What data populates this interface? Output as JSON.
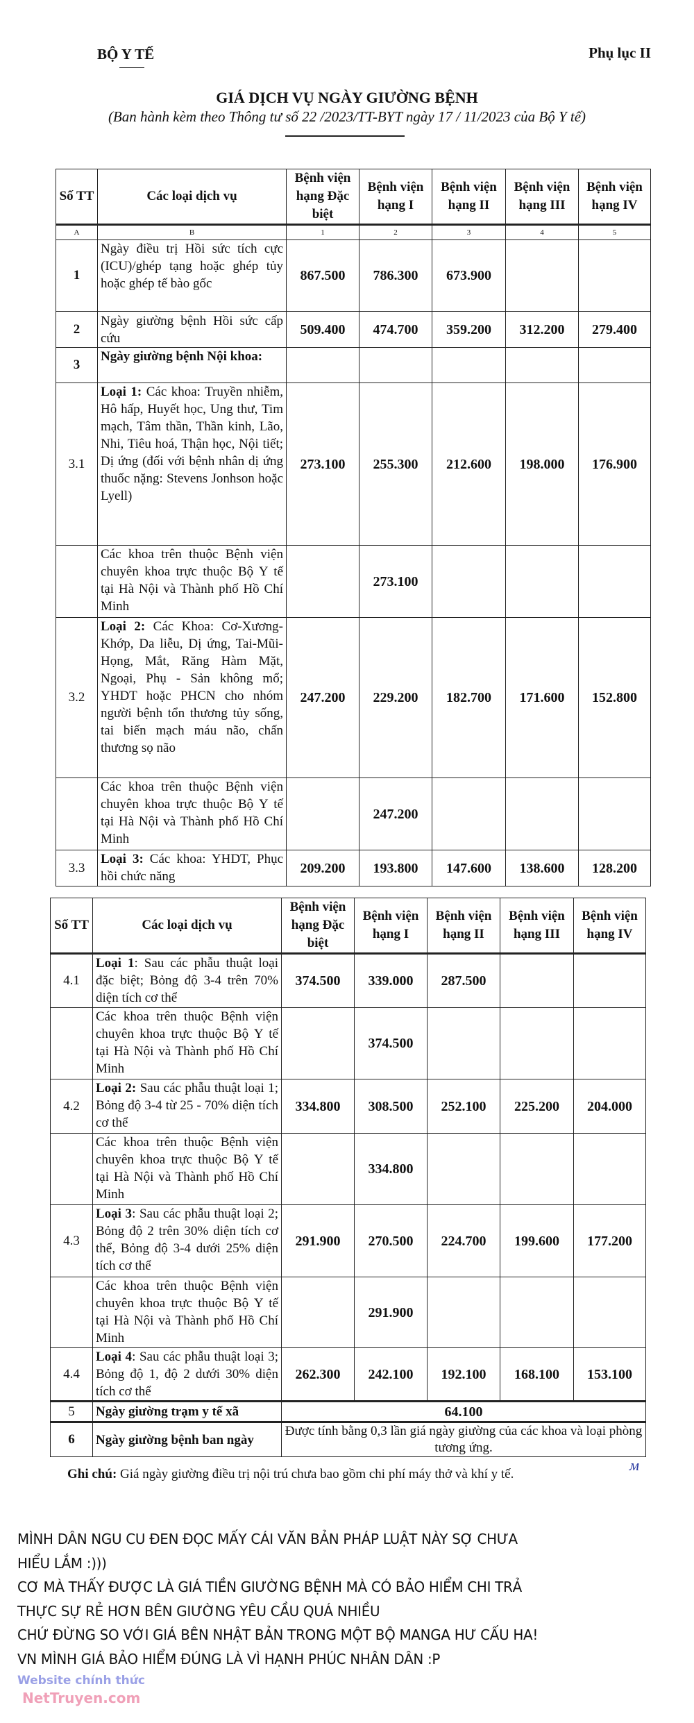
{
  "header": {
    "ministry": "BỘ Y TẾ",
    "appendix": "Phụ lục II"
  },
  "title": "GIÁ DỊCH VỤ NGÀY GIƯỜNG BỆNH",
  "subtitle": "(Ban hành kèm theo Thông tư số  22  /2023/TT-BYT  ngày  17 / 11/2023  của Bộ Y tế)",
  "columns": [
    "Số TT",
    "Các loại dịch vụ",
    "Bệnh viện hạng Đặc biệt",
    "Bệnh viện hạng I",
    "Bệnh viện hạng II",
    "Bệnh viện hạng III",
    "Bệnh viện hạng IV"
  ],
  "column_codes": [
    "A",
    "B",
    "1",
    "2",
    "3",
    "4",
    "5"
  ],
  "table1_rows": [
    {
      "stt": "1",
      "bold_stt": true,
      "label": "",
      "desc": "Ngày điều trị Hồi sức tích cực (ICU)/ghép tạng hoặc ghép tủy hoặc ghép tế bào gốc",
      "values": [
        "867.500",
        "786.300",
        "673.900",
        "",
        ""
      ]
    },
    {
      "stt": "2",
      "bold_stt": true,
      "label": "",
      "desc": "Ngày giường bệnh Hồi sức cấp cứu",
      "values": [
        "509.400",
        "474.700",
        "359.200",
        "312.200",
        "279.400"
      ]
    },
    {
      "stt": "3",
      "bold_stt": true,
      "label": "Ngày giường bệnh Nội khoa:",
      "desc": "",
      "values": [
        "",
        "",
        "",
        "",
        ""
      ]
    },
    {
      "stt": "3.1",
      "bold_stt": false,
      "label": "Loại 1:",
      "desc": " Các khoa: Truyền nhiễm, Hô hấp, Huyết học, Ung thư, Tim mạch, Tâm thần, Thần kinh, Lão, Nhi, Tiêu hoá, Thận học, Nội tiết; Dị ứng (đối với bệnh nhân dị ứng thuốc nặng: Stevens Jonhson hoặc Lyell)",
      "values": [
        "273.100",
        "255.300",
        "212.600",
        "198.000",
        "176.900"
      ]
    },
    {
      "stt": "",
      "bold_stt": false,
      "label": "",
      "desc": "Các khoa trên thuộc Bệnh viện chuyên khoa trực thuộc Bộ Y tế tại Hà Nội và Thành phố Hồ Chí Minh",
      "values": [
        "",
        "273.100",
        "",
        "",
        ""
      ]
    },
    {
      "stt": "3.2",
      "bold_stt": false,
      "label": "Loại 2:",
      "desc": " Các Khoa: Cơ-Xương-Khớp, Da liễu, Dị ứng, Tai-Mũi-Họng, Mắt, Răng Hàm Mặt, Ngoại, Phụ - Sản không mổ; YHDT hoặc PHCN cho nhóm người bệnh tổn thương tủy sống, tai biến mạch máu não, chấn thương sọ não",
      "values": [
        "247.200",
        "229.200",
        "182.700",
        "171.600",
        "152.800"
      ]
    },
    {
      "stt": "",
      "bold_stt": false,
      "label": "",
      "desc": "Các khoa trên thuộc Bệnh viện chuyên khoa trực thuộc Bộ Y tế tại Hà Nội và Thành phố Hồ Chí Minh",
      "values": [
        "",
        "247.200",
        "",
        "",
        ""
      ]
    },
    {
      "stt": "3.3",
      "bold_stt": false,
      "label": "Loại 3:",
      "desc": " Các khoa: YHDT, Phục hồi chức năng",
      "values": [
        "209.200",
        "193.800",
        "147.600",
        "138.600",
        "128.200"
      ]
    }
  ],
  "table2_rows": [
    {
      "stt": "4.1",
      "bold_stt": false,
      "label": "Loại 1",
      "desc": ": Sau các phẫu thuật loại đặc biệt; Bỏng độ 3-4 trên 70% diện tích cơ thể",
      "values": [
        "374.500",
        "339.000",
        "287.500",
        "",
        ""
      ]
    },
    {
      "stt": "",
      "bold_stt": false,
      "label": "",
      "desc": "Các khoa trên thuộc Bệnh viện chuyên khoa trực thuộc Bộ Y tế tại Hà Nội và Thành phố Hồ Chí Minh",
      "values": [
        "",
        "374.500",
        "",
        "",
        ""
      ]
    },
    {
      "stt": "4.2",
      "bold_stt": false,
      "label": "Loại 2:",
      "desc": " Sau các phẫu thuật loại 1; Bỏng độ 3-4 từ 25 - 70% diện tích cơ thể",
      "values": [
        "334.800",
        "308.500",
        "252.100",
        "225.200",
        "204.000"
      ]
    },
    {
      "stt": "",
      "bold_stt": false,
      "label": "",
      "desc": "Các khoa trên thuộc Bệnh viện chuyên khoa trực thuộc Bộ Y tế tại Hà Nội và Thành phố Hồ Chí Minh",
      "values": [
        "",
        "334.800",
        "",
        "",
        ""
      ]
    },
    {
      "stt": "4.3",
      "bold_stt": false,
      "label": "Loại 3",
      "desc": ": Sau các phẫu thuật loại 2; Bỏng độ 2 trên 30% diện tích cơ thể, Bỏng độ 3-4 dưới 25% diện tích cơ thể",
      "values": [
        "291.900",
        "270.500",
        "224.700",
        "199.600",
        "177.200"
      ]
    },
    {
      "stt": "",
      "bold_stt": false,
      "label": "",
      "desc": "Các khoa trên thuộc Bệnh viện chuyên khoa trực thuộc Bộ Y tế tại Hà Nội và Thành phố Hồ Chí Minh",
      "values": [
        "",
        "291.900",
        "",
        "",
        ""
      ]
    },
    {
      "stt": "4.4",
      "bold_stt": false,
      "label": "Loại 4",
      "desc": ": Sau các phẫu thuật loại 3; Bỏng độ 1, độ 2 dưới 30% diện tích cơ thể",
      "values": [
        "262.300",
        "242.100",
        "192.100",
        "168.100",
        "153.100"
      ]
    }
  ],
  "table2_merged_rows": [
    {
      "stt": "5",
      "label": "Ngày giường trạm y tế xã",
      "merged_value": "64.100",
      "bold_value": true
    },
    {
      "stt": "6",
      "label": "Ngày giường bệnh ban ngày",
      "merged_value": "Được tính bằng 0,3 lần giá ngày giường của các khoa và loại phòng tương ứng.",
      "bold_value": false
    }
  ],
  "note": {
    "label": "Ghi chú:",
    "text": " Giá ngày giường điều trị nội trú chưa bao gồm chi phí máy thở và  khí y tế."
  },
  "comment_lines": [
    "MÌNH DÂN NGU CU ĐEN ĐỌC MẤY CÁI VĂN BẢN PHÁP LUẬT NÀY SỢ CHƯA",
    "HIỂU LẮM :)))",
    "CƠ MÀ THẤY ĐƯỢC LÀ GIÁ TIỀN GIƯỜNG BỆNH MÀ CÓ BẢO HIỂM CHI TRẢ",
    "THỰC SỰ RẺ HƠN BÊN GIƯỜNG YÊU CẦU QUÁ NHIỀU",
    "CHỨ ĐỪNG SO VỚI GIÁ BÊN NHẬT BẢN TRONG MỘT BỘ MANGA HƯ CẤU HA!",
    "VN MÌNH GIÁ BẢO HIỂM ĐÚNG LÀ VÌ HẠNH PHÚC NHÂN DÂN :P"
  ],
  "watermark": {
    "line1": "Website chính thức",
    "line2": "NetTruyen.com"
  },
  "colors": {
    "watermark_blue": "#9aa0e6",
    "watermark_pink": "#f0a0b8",
    "signature": "#2a3aa0"
  }
}
